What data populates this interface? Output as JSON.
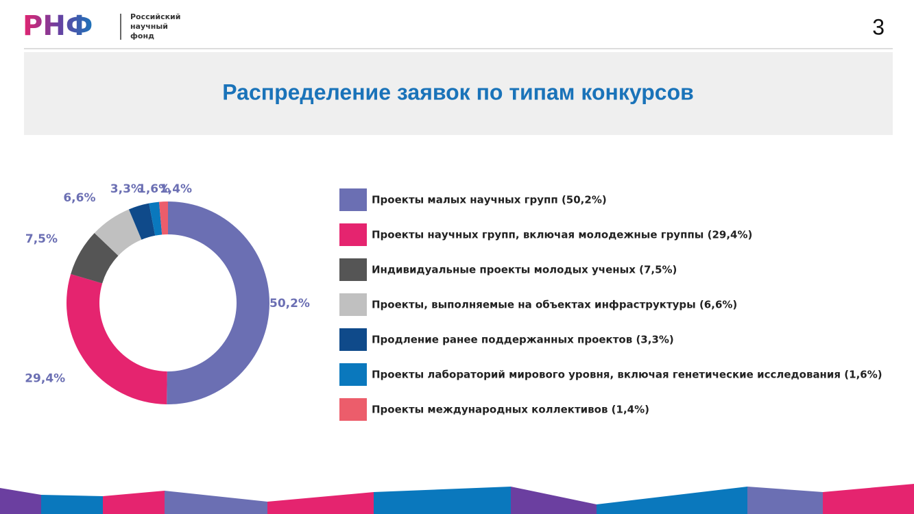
{
  "header": {
    "logo": "РНФ",
    "logo_caption": [
      "Российский",
      "научный",
      "фонд"
    ],
    "page_number": "3"
  },
  "chart_data": {
    "type": "pie",
    "title": "Распределение заявок по типам конкурсов",
    "donut": true,
    "categories": [
      "Проекты малых научных групп (50,2%)",
      "Проекты научных групп, включая молодежные группы (29,4%)",
      "Индивидуальные проекты молодых ученых (7,5%)",
      "Проекты, выполняемые на объектах инфраструктуры (6,6%)",
      "Продление ранее поддержанных проектов (3,3%)",
      "Проекты лабораторий мирового уровня, включая генетические исследования (1,6%)",
      "Проекты международных коллективов (1,4%)"
    ],
    "values": [
      50.2,
      29.4,
      7.5,
      6.6,
      3.3,
      1.6,
      1.4
    ],
    "value_labels": [
      "50,2%",
      "29,4%",
      "7,5%",
      "6,6%",
      "3,3%",
      "1,6%",
      "1,4%"
    ],
    "colors": [
      "#6b6fb3",
      "#e5246f",
      "#555555",
      "#c0c0c0",
      "#0f4a8a",
      "#0a78bd",
      "#ec5d6b"
    ],
    "legend": "right"
  }
}
